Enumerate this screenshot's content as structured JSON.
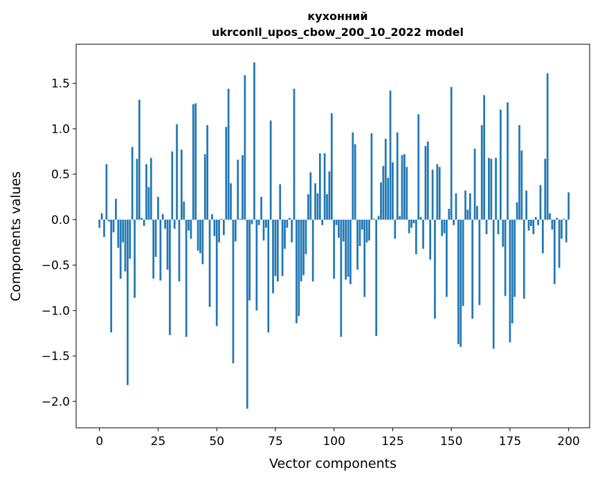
{
  "chart_data": {
    "type": "bar",
    "title_line1": "кухонний",
    "title_line2": "ukrconll_upos_cbow_200_10_2022 model",
    "xlabel": "Vector components",
    "ylabel": "Components values",
    "xlim": [
      -9.95,
      208.95
    ],
    "ylim": [
      -2.29,
      1.93
    ],
    "xticks": [
      0,
      25,
      50,
      75,
      100,
      125,
      150,
      175,
      200
    ],
    "xtick_labels": [
      "0",
      "25",
      "50",
      "75",
      "100",
      "125",
      "150",
      "175",
      "200"
    ],
    "yticks": [
      -2.0,
      -1.5,
      -1.0,
      -0.5,
      0.0,
      0.5,
      1.0,
      1.5
    ],
    "ytick_labels": [
      "−2.0",
      "−1.5",
      "−1.0",
      "−0.5",
      "0.0",
      "0.5",
      "1.0",
      "1.5"
    ],
    "bar_color": "#1f77b4",
    "grid": false,
    "legend": false,
    "values": [
      -0.09,
      0.07,
      -0.19,
      0.61,
      -0.02,
      -1.24,
      -0.14,
      0.23,
      -0.31,
      -0.65,
      -0.25,
      -0.57,
      -1.82,
      -0.43,
      0.8,
      -0.86,
      0.67,
      1.32,
      0.02,
      -0.07,
      0.61,
      0.36,
      0.68,
      -0.65,
      -0.41,
      0.25,
      -0.67,
      0.06,
      -0.1,
      -0.55,
      -1.27,
      0.75,
      -0.1,
      1.05,
      -0.68,
      0.77,
      0.2,
      -1.29,
      -0.12,
      -0.21,
      1.27,
      1.28,
      -0.34,
      -0.37,
      -0.49,
      0.72,
      1.04,
      -0.96,
      0.06,
      -0.18,
      -1.17,
      -0.25,
      0.01,
      -0.17,
      1.02,
      1.44,
      0.4,
      -1.58,
      -0.24,
      0.66,
      0.01,
      0.71,
      1.59,
      -2.08,
      -0.89,
      -0.05,
      1.73,
      -1.0,
      -0.06,
      0.25,
      -0.23,
      -0.09,
      -1.24,
      1.09,
      -0.81,
      -0.62,
      -0.68,
      0.39,
      -0.62,
      -0.32,
      -0.09,
      0.02,
      -0.25,
      1.44,
      -1.14,
      -1.06,
      -0.68,
      -0.61,
      -0.38,
      0.28,
      0.52,
      -0.68,
      0.4,
      0.29,
      0.73,
      -0.06,
      0.73,
      0.28,
      0.53,
      1.17,
      -0.65,
      -0.06,
      -0.2,
      -1.29,
      -0.24,
      -0.66,
      -0.63,
      -0.71,
      0.96,
      0.83,
      -0.55,
      -0.29,
      -0.11,
      -0.85,
      -0.25,
      -0.23,
      0.95,
      0.01,
      -1.28,
      0.04,
      0.41,
      0.59,
      0.89,
      0.46,
      1.42,
      0.63,
      -0.21,
      0.96,
      0.04,
      0.71,
      0.72,
      0.58,
      -0.15,
      -0.09,
      -0.04,
      -0.38,
      1.16,
      0.03,
      -0.32,
      0.81,
      0.86,
      -0.44,
      0.55,
      -1.09,
      0.61,
      0.58,
      -0.18,
      -0.15,
      -0.85,
      0.12,
      1.46,
      -0.06,
      0.29,
      -1.37,
      -1.4,
      -0.95,
      0.32,
      0.11,
      0.29,
      -1.09,
      0.78,
      0.15,
      -0.94,
      1.04,
      1.37,
      -0.16,
      0.68,
      0.67,
      -1.42,
      0.68,
      -0.16,
      1.21,
      -0.3,
      -0.84,
      1.29,
      -1.35,
      -1.14,
      -0.85,
      0.19,
      1.04,
      0.76,
      -0.87,
      0.32,
      -0.12,
      -0.07,
      -0.16,
      0.03,
      -0.06,
      0.38,
      -0.37,
      0.67,
      1.61,
      0.07,
      -0.11,
      -0.71,
      0.02,
      -0.53,
      -0.21,
      0.01,
      -0.25,
      0.3
    ]
  }
}
